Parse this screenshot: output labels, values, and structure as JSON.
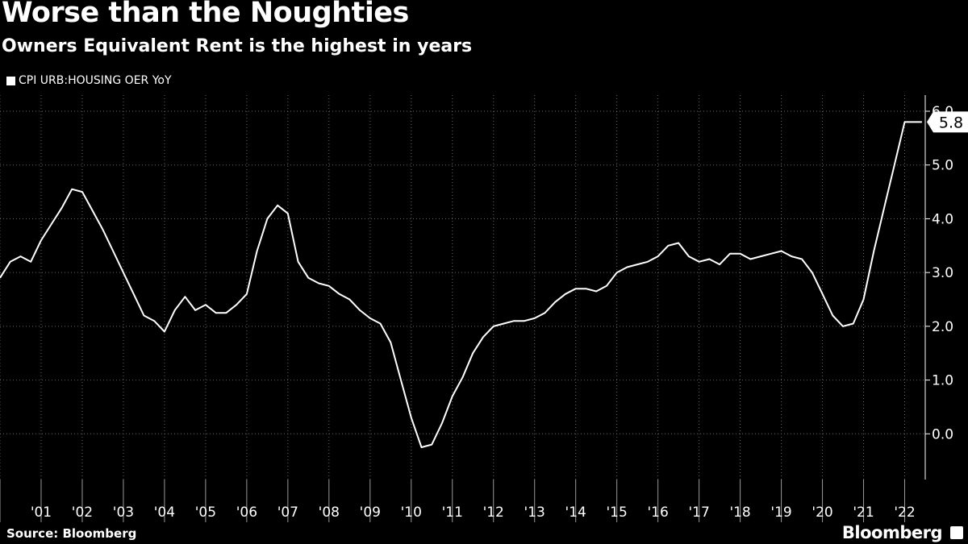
{
  "chart_data": {
    "type": "line",
    "title": "Worse than the Noughties",
    "subtitle": "Owners Equivalent Rent is the highest in years",
    "source": "Source: Bloomberg",
    "brand": "Bloomberg",
    "series": [
      {
        "name": "CPI URB:HOUSING OER YoY",
        "last_value_label": "5.8",
        "x": [
          2000.0,
          2000.25,
          2000.5,
          2000.75,
          2001.0,
          2001.25,
          2001.5,
          2001.75,
          2002.0,
          2002.25,
          2002.5,
          2002.75,
          2003.0,
          2003.25,
          2003.5,
          2003.75,
          2004.0,
          2004.25,
          2004.5,
          2004.75,
          2005.0,
          2005.25,
          2005.5,
          2005.75,
          2006.0,
          2006.25,
          2006.5,
          2006.75,
          2007.0,
          2007.25,
          2007.5,
          2007.75,
          2008.0,
          2008.25,
          2008.5,
          2008.75,
          2009.0,
          2009.25,
          2009.5,
          2009.75,
          2010.0,
          2010.25,
          2010.5,
          2010.75,
          2011.0,
          2011.25,
          2011.5,
          2011.75,
          2012.0,
          2012.25,
          2012.5,
          2012.75,
          2013.0,
          2013.25,
          2013.5,
          2013.75,
          2014.0,
          2014.25,
          2014.5,
          2014.75,
          2015.0,
          2015.25,
          2015.5,
          2015.75,
          2016.0,
          2016.25,
          2016.5,
          2016.75,
          2017.0,
          2017.25,
          2017.5,
          2017.75,
          2018.0,
          2018.25,
          2018.5,
          2018.75,
          2019.0,
          2019.25,
          2019.5,
          2019.75,
          2020.0,
          2020.25,
          2020.5,
          2020.75,
          2021.0,
          2021.25,
          2021.5,
          2021.75,
          2022.0,
          2022.25,
          2022.42
        ],
        "values": [
          2.9,
          3.2,
          3.3,
          3.2,
          3.6,
          3.9,
          4.2,
          4.55,
          4.5,
          4.15,
          3.8,
          3.4,
          3.0,
          2.6,
          2.2,
          2.1,
          1.9,
          2.3,
          2.55,
          2.3,
          2.4,
          2.25,
          2.25,
          2.4,
          2.6,
          3.4,
          4.0,
          4.25,
          4.1,
          3.2,
          2.9,
          2.8,
          2.75,
          2.6,
          2.5,
          2.3,
          2.15,
          2.05,
          1.7,
          1.0,
          0.3,
          -0.25,
          -0.2,
          0.2,
          0.7,
          1.05,
          1.5,
          1.8,
          2.0,
          2.05,
          2.1,
          2.1,
          2.15,
          2.25,
          2.45,
          2.6,
          2.7,
          2.7,
          2.65,
          2.75,
          3.0,
          3.1,
          3.15,
          3.2,
          3.3,
          3.5,
          3.55,
          3.3,
          3.2,
          3.25,
          3.15,
          3.35,
          3.35,
          3.25,
          3.3,
          3.35,
          3.4,
          3.3,
          3.25,
          3.0,
          2.6,
          2.2,
          2.0,
          2.05,
          2.5,
          3.4,
          4.2,
          5.0,
          5.8,
          5.8,
          5.8
        ]
      }
    ],
    "xlabel": "",
    "ylabel": "",
    "xlim": [
      2000.0,
      2022.5
    ],
    "ylim": [
      -0.85,
      6.3
    ],
    "yticks": [
      0.0,
      1.0,
      2.0,
      3.0,
      4.0,
      5.0,
      6.0
    ],
    "ytick_labels": [
      "0.0",
      "1.0",
      "2.0",
      "3.0",
      "4.0",
      "5.0",
      "6.0"
    ],
    "xtick_labels": [
      "'01",
      "'02",
      "'03",
      "'04",
      "'05",
      "'06",
      "'07",
      "'08",
      "'09",
      "'10",
      "'11",
      "'12",
      "'13",
      "'14",
      "'15",
      "'16",
      "'17",
      "'18",
      "'19",
      "'20",
      "'21",
      "'22"
    ],
    "grid": true,
    "colors": {
      "background": "#000000",
      "line": "#ffffff",
      "grid": "#666666"
    }
  }
}
